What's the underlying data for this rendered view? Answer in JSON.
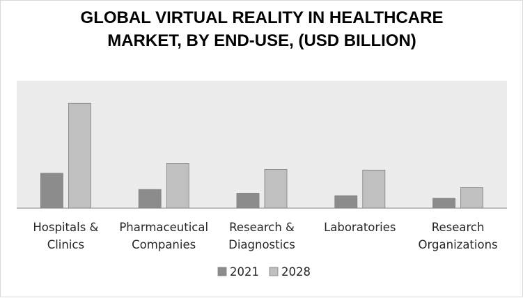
{
  "chart_data": {
    "type": "bar",
    "title": "GLOBAL VIRTUAL REALITY IN HEALTHCARE MARKET, BY END-USE, (USD BILLION)",
    "categories": [
      [
        "Hospitals &",
        "Clinics"
      ],
      [
        "Pharmaceutical",
        "Companies"
      ],
      [
        "Research &",
        "Diagnostics"
      ],
      [
        "Laboratories"
      ],
      [
        "Research",
        "Organizations"
      ]
    ],
    "series": [
      {
        "name": "2021",
        "color": "#8c8c8c",
        "values": [
          2.8,
          1.5,
          1.2,
          1.0,
          0.8
        ]
      },
      {
        "name": "2028",
        "color": "#c0c0c0",
        "values": [
          8.4,
          3.6,
          3.1,
          3.05,
          1.65
        ]
      }
    ],
    "ylim": [
      0,
      10.2
    ],
    "legend_position": "bottom",
    "plot_background": "#ececec",
    "grid": false,
    "y_axis_visible": false
  }
}
